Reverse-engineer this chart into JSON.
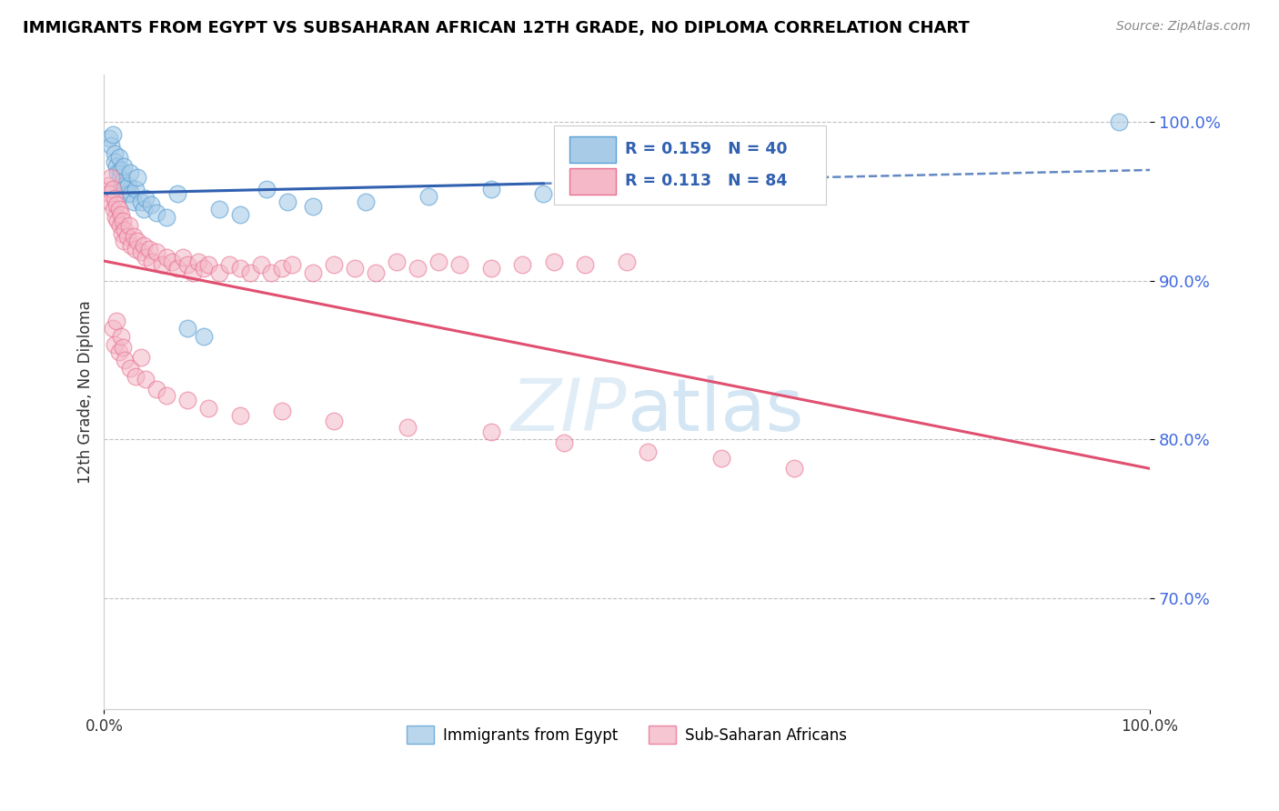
{
  "title": "IMMIGRANTS FROM EGYPT VS SUBSAHARAN AFRICAN 12TH GRADE, NO DIPLOMA CORRELATION CHART",
  "source": "Source: ZipAtlas.com",
  "ylabel": "12th Grade, No Diploma",
  "xlim": [
    0.0,
    1.0
  ],
  "ylim": [
    0.63,
    1.03
  ],
  "yticks": [
    0.7,
    0.8,
    0.9,
    1.0
  ],
  "ytick_labels": [
    "70.0%",
    "80.0%",
    "90.0%",
    "100.0%"
  ],
  "blue_R": 0.159,
  "blue_N": 40,
  "pink_R": 0.113,
  "pink_N": 84,
  "blue_color": "#a8cce8",
  "pink_color": "#f4b8c8",
  "blue_edge_color": "#5a9fd4",
  "pink_edge_color": "#e87090",
  "blue_line_color": "#3060b0",
  "pink_line_color": "#e05070",
  "legend_label_blue": "Immigrants from Egypt",
  "legend_label_pink": "Sub-Saharan Africans",
  "blue_scatter_x": [
    0.005,
    0.007,
    0.008,
    0.01,
    0.01,
    0.012,
    0.013,
    0.014,
    0.015,
    0.016,
    0.017,
    0.018,
    0.019,
    0.02,
    0.022,
    0.023,
    0.025,
    0.026,
    0.028,
    0.03,
    0.032,
    0.035,
    0.038,
    0.04,
    0.045,
    0.05,
    0.06,
    0.07,
    0.08,
    0.095,
    0.11,
    0.13,
    0.155,
    0.175,
    0.2,
    0.25,
    0.31,
    0.37,
    0.42,
    0.97
  ],
  "blue_scatter_y": [
    0.99,
    0.985,
    0.992,
    0.98,
    0.975,
    0.972,
    0.968,
    0.978,
    0.965,
    0.97,
    0.96,
    0.963,
    0.972,
    0.958,
    0.955,
    0.96,
    0.968,
    0.955,
    0.95,
    0.958,
    0.965,
    0.95,
    0.945,
    0.952,
    0.948,
    0.943,
    0.94,
    0.955,
    0.87,
    0.865,
    0.945,
    0.942,
    0.958,
    0.95,
    0.947,
    0.95,
    0.953,
    0.958,
    0.955,
    1.0
  ],
  "pink_scatter_x": [
    0.004,
    0.005,
    0.006,
    0.007,
    0.008,
    0.009,
    0.01,
    0.011,
    0.012,
    0.013,
    0.014,
    0.015,
    0.016,
    0.017,
    0.018,
    0.019,
    0.02,
    0.022,
    0.024,
    0.026,
    0.028,
    0.03,
    0.032,
    0.035,
    0.038,
    0.04,
    0.043,
    0.046,
    0.05,
    0.055,
    0.06,
    0.065,
    0.07,
    0.075,
    0.08,
    0.085,
    0.09,
    0.095,
    0.1,
    0.11,
    0.12,
    0.13,
    0.14,
    0.15,
    0.16,
    0.17,
    0.18,
    0.2,
    0.22,
    0.24,
    0.26,
    0.28,
    0.3,
    0.32,
    0.34,
    0.37,
    0.4,
    0.43,
    0.46,
    0.5,
    0.008,
    0.01,
    0.012,
    0.014,
    0.016,
    0.018,
    0.02,
    0.025,
    0.03,
    0.035,
    0.04,
    0.05,
    0.06,
    0.08,
    0.1,
    0.13,
    0.17,
    0.22,
    0.29,
    0.37,
    0.44,
    0.52,
    0.59,
    0.66
  ],
  "pink_scatter_y": [
    0.96,
    0.955,
    0.95,
    0.965,
    0.958,
    0.945,
    0.952,
    0.94,
    0.948,
    0.938,
    0.945,
    0.935,
    0.942,
    0.93,
    0.938,
    0.925,
    0.932,
    0.928,
    0.935,
    0.922,
    0.928,
    0.92,
    0.925,
    0.918,
    0.922,
    0.915,
    0.92,
    0.912,
    0.918,
    0.91,
    0.915,
    0.912,
    0.908,
    0.915,
    0.91,
    0.905,
    0.912,
    0.908,
    0.91,
    0.905,
    0.91,
    0.908,
    0.905,
    0.91,
    0.905,
    0.908,
    0.91,
    0.905,
    0.91,
    0.908,
    0.905,
    0.912,
    0.908,
    0.912,
    0.91,
    0.908,
    0.91,
    0.912,
    0.91,
    0.912,
    0.87,
    0.86,
    0.875,
    0.855,
    0.865,
    0.858,
    0.85,
    0.845,
    0.84,
    0.852,
    0.838,
    0.832,
    0.828,
    0.825,
    0.82,
    0.815,
    0.818,
    0.812,
    0.808,
    0.805,
    0.798,
    0.792,
    0.788,
    0.782
  ]
}
